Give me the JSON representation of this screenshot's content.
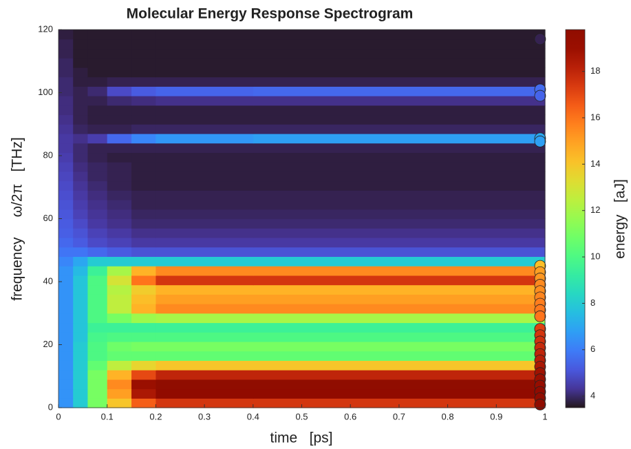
{
  "chart_data": {
    "type": "heatmap",
    "title": "Molecular Energy Response Spectrogram",
    "xlabel": "time   [ps]",
    "ylabel": "frequency     ω/2π   [THz]",
    "colorbar_label": "energy   [aJ]",
    "xlim": [
      0,
      1
    ],
    "ylim": [
      0,
      120
    ],
    "clim": [
      3.5,
      19.8
    ],
    "xticks": [
      0,
      0.1,
      0.2,
      0.3,
      0.4,
      0.5,
      0.6,
      0.7,
      0.8,
      0.9,
      1
    ],
    "yticks": [
      0,
      20,
      40,
      60,
      80,
      100,
      120
    ],
    "cticks": [
      4,
      6,
      8,
      10,
      12,
      14,
      16,
      18
    ],
    "colormap": "turbo",
    "xbins": [
      0,
      0.03,
      0.06,
      0.1,
      0.15,
      0.2,
      0.4,
      1
    ],
    "ybins": [
      0,
      3,
      6,
      9,
      12,
      15,
      18,
      21,
      24,
      27,
      30,
      33,
      36,
      39,
      42,
      45,
      48,
      51,
      54,
      57,
      60,
      63,
      66,
      69,
      72,
      75,
      78,
      81,
      84,
      87,
      90,
      93,
      96,
      99,
      102,
      105,
      108,
      111,
      114,
      117,
      120
    ],
    "z": [
      [
        6.5,
        8,
        11,
        14,
        16.5,
        17.5,
        17.5
      ],
      [
        6.5,
        8,
        11,
        15,
        18.5,
        19.5,
        19.5
      ],
      [
        6.5,
        8,
        11,
        15.5,
        19,
        19.8,
        19.8
      ],
      [
        6.5,
        8,
        11,
        14.5,
        17,
        18,
        18
      ],
      [
        6.5,
        8,
        10.5,
        12.5,
        13.5,
        14,
        14
      ],
      [
        6.5,
        8,
        10,
        10.5,
        10.5,
        10.5,
        10.5
      ],
      [
        6.5,
        8,
        10,
        10.8,
        11,
        11,
        11
      ],
      [
        6.5,
        7.8,
        9.8,
        10,
        10,
        10,
        10
      ],
      [
        6.5,
        7.8,
        9.5,
        9.5,
        9.5,
        9.5,
        9.5
      ],
      [
        6.5,
        7.8,
        10,
        11,
        11.8,
        12,
        12
      ],
      [
        6.5,
        7.8,
        10,
        12.5,
        14.5,
        15.5,
        15.5
      ],
      [
        6.5,
        7.8,
        10,
        12.5,
        14.2,
        15,
        15
      ],
      [
        6.5,
        7.8,
        10,
        12.3,
        13.8,
        14.5,
        14.5
      ],
      [
        6.5,
        7.8,
        10,
        13,
        16,
        17.5,
        17.5
      ],
      [
        6.5,
        7.5,
        9.5,
        12,
        14.5,
        15.5,
        15.5
      ],
      [
        6.2,
        7,
        8,
        8,
        8,
        8,
        8
      ],
      [
        5.8,
        5.8,
        5.5,
        5.2,
        5,
        5,
        5
      ],
      [
        5.5,
        5.2,
        4.8,
        4.6,
        4.4,
        4.4,
        4.4
      ],
      [
        5.3,
        5,
        4.6,
        4.4,
        4.2,
        4.2,
        4.2
      ],
      [
        5.2,
        4.8,
        4.4,
        4.2,
        4,
        4,
        4
      ],
      [
        5.1,
        4.6,
        4.3,
        4.1,
        3.9,
        3.9,
        3.9
      ],
      [
        5,
        4.5,
        4.2,
        4,
        3.8,
        3.8,
        3.8
      ],
      [
        4.9,
        4.4,
        4.1,
        3.9,
        3.8,
        3.8,
        3.8
      ],
      [
        4.8,
        4.3,
        4,
        3.8,
        3.7,
        3.7,
        3.7
      ],
      [
        4.7,
        4.2,
        3.9,
        3.8,
        3.7,
        3.7,
        3.7
      ],
      [
        4.6,
        4.1,
        3.9,
        3.8,
        3.7,
        3.7,
        3.7
      ],
      [
        4.5,
        4,
        3.8,
        3.7,
        3.7,
        3.7,
        3.7
      ],
      [
        4.4,
        4,
        3.8,
        3.8,
        3.8,
        3.8,
        3.8
      ],
      [
        4.4,
        4.2,
        4.5,
        5.5,
        6.2,
        6.6,
        6.8
      ],
      [
        4.3,
        3.9,
        3.8,
        3.8,
        3.9,
        3.9,
        3.9
      ],
      [
        4.2,
        3.8,
        3.7,
        3.7,
        3.7,
        3.7,
        3.7
      ],
      [
        4.1,
        3.8,
        3.7,
        3.7,
        3.7,
        3.7,
        3.7
      ],
      [
        4.1,
        3.8,
        3.8,
        4,
        4.1,
        4.2,
        4.2
      ],
      [
        4,
        3.8,
        4,
        4.8,
        5.2,
        5.4,
        5.5
      ],
      [
        4,
        3.7,
        3.7,
        3.8,
        3.8,
        3.8,
        3.8
      ],
      [
        3.9,
        3.7,
        3.6,
        3.6,
        3.6,
        3.6,
        3.6
      ],
      [
        3.9,
        3.6,
        3.6,
        3.6,
        3.6,
        3.6,
        3.6
      ],
      [
        3.8,
        3.6,
        3.6,
        3.6,
        3.6,
        3.6,
        3.6
      ],
      [
        3.8,
        3.6,
        3.6,
        3.6,
        3.6,
        3.6,
        3.6
      ],
      [
        3.7,
        3.6,
        3.6,
        3.6,
        3.6,
        3.6,
        3.6
      ]
    ],
    "points": {
      "x": [
        0.99,
        0.99,
        0.99,
        0.99,
        0.99,
        0.99,
        0.99,
        0.99,
        0.99,
        0.99,
        0.99,
        0.99,
        0.99,
        0.99,
        0.99,
        0.99,
        0.99,
        0.99,
        0.99,
        0.99,
        0.99,
        0.99,
        0.99,
        0.99,
        0.99,
        0.99,
        0.99
      ],
      "y": [
        117,
        101,
        99,
        85.5,
        84.5,
        45,
        43,
        41,
        39,
        37,
        35,
        33,
        31,
        29,
        25,
        23,
        21,
        19,
        17,
        15,
        13,
        11,
        9,
        7,
        5,
        3,
        1
      ],
      "energy": [
        3.8,
        5.6,
        5.4,
        7,
        6.8,
        14.2,
        15,
        15.2,
        15.5,
        15.4,
        15.6,
        15.8,
        15.9,
        16,
        17.2,
        17.5,
        17.6,
        17.8,
        18,
        18.2,
        18.5,
        18.8,
        19,
        19.2,
        19.5,
        19.6,
        19.7
      ]
    }
  }
}
